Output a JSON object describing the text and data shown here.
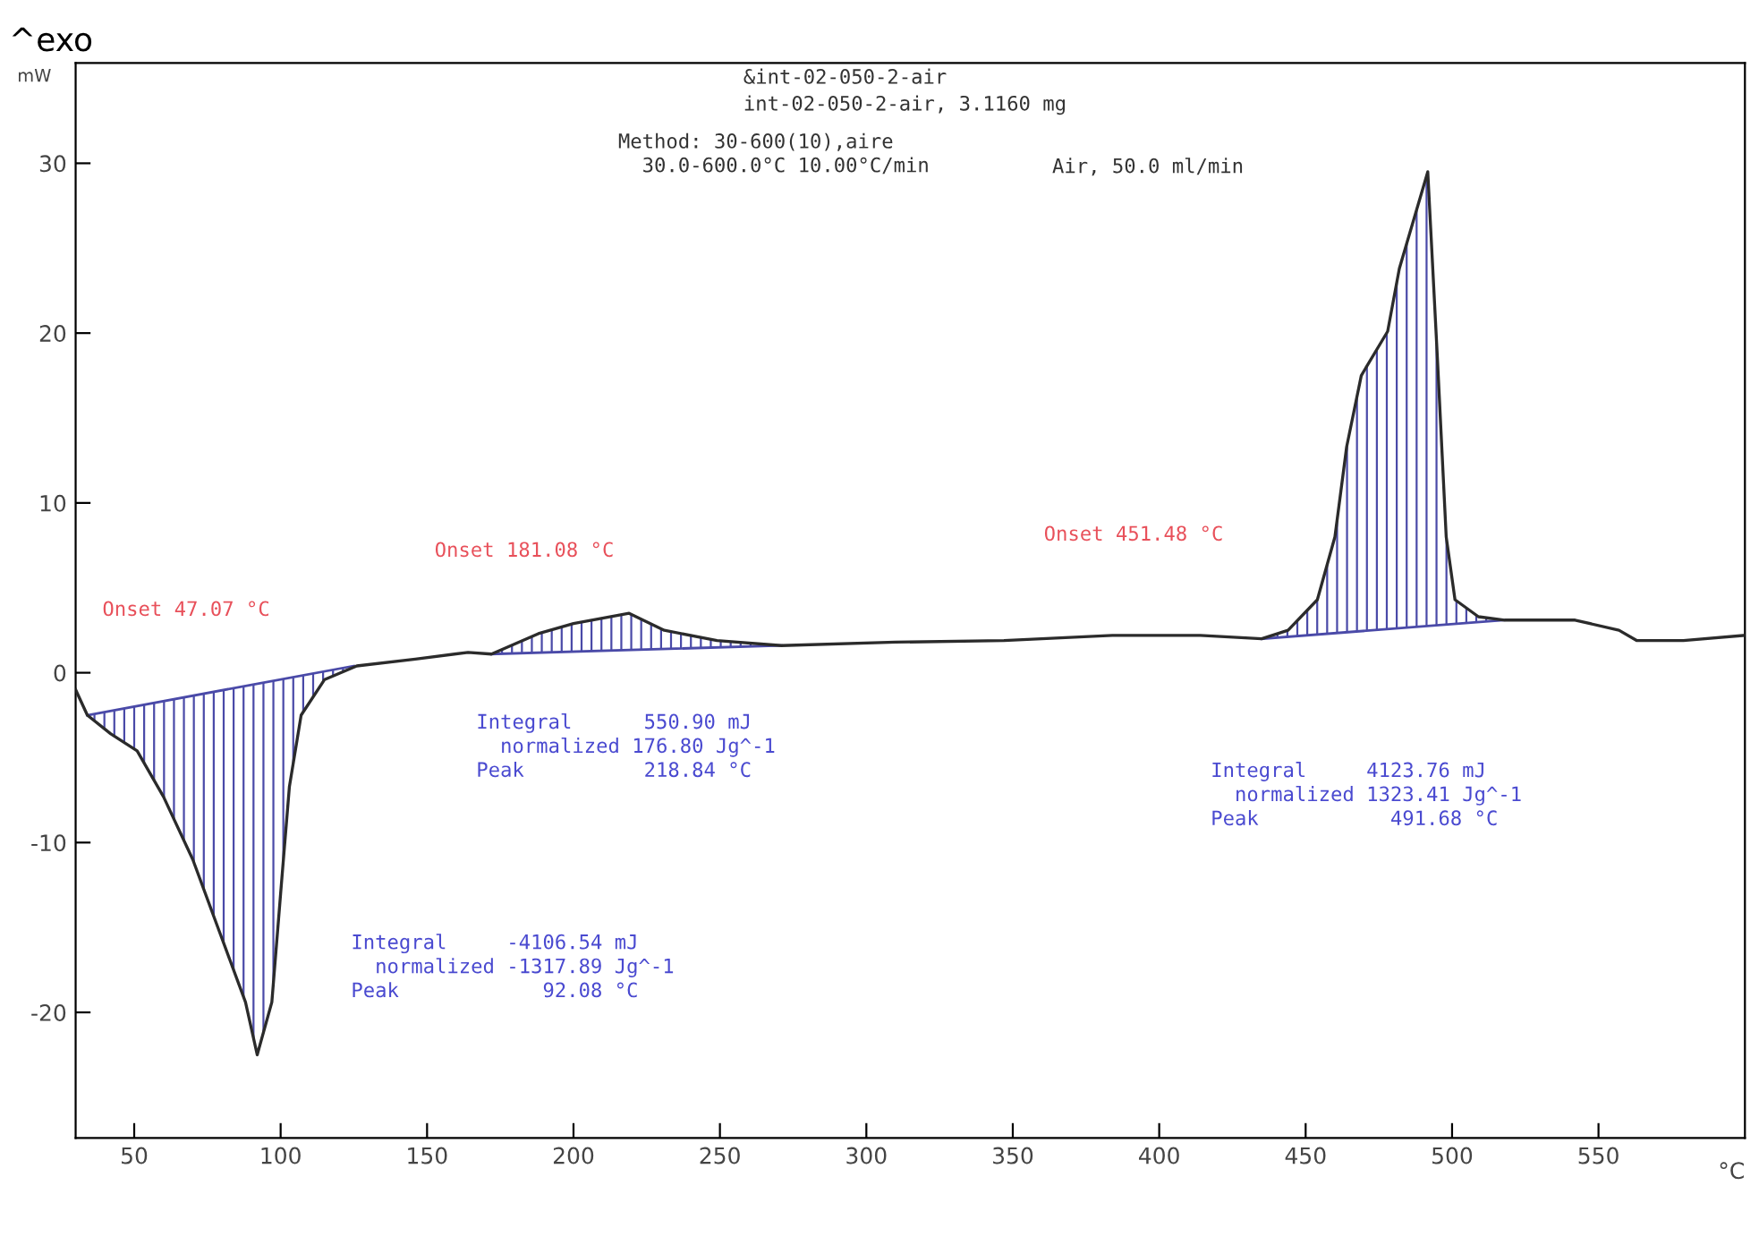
{
  "chart_data": {
    "type": "line",
    "xlabel": "°C",
    "ylabel": "mW",
    "xlim": [
      30,
      600
    ],
    "ylim": [
      -27.4,
      35.9
    ],
    "xticks": [
      50,
      100,
      150,
      200,
      250,
      300,
      350,
      400,
      450,
      500,
      550
    ],
    "yticks": [
      -20,
      -10,
      0,
      10,
      20,
      30
    ],
    "grid": false,
    "legend": false,
    "marker": "none",
    "line_style": "solid",
    "series": [
      {
        "color": "#2b2b2b",
        "x": [
          30,
          34,
          42,
          51,
          60,
          70,
          79,
          88,
          92,
          97,
          100,
          103,
          107,
          115,
          126,
          146,
          164,
          172,
          188,
          200,
          219,
          231,
          249,
          271,
          310,
          347,
          384,
          414,
          435,
          444,
          454,
          460,
          464,
          469,
          478,
          482,
          491.7,
          495,
          498,
          501,
          509,
          518,
          542,
          557,
          563,
          579,
          600
        ],
        "values": [
          -1.0,
          -2.5,
          -3.6,
          -4.6,
          -7.3,
          -11.0,
          -15.2,
          -19.4,
          -22.5,
          -19.4,
          -13.0,
          -6.7,
          -2.5,
          -0.4,
          0.4,
          0.8,
          1.2,
          1.1,
          2.3,
          2.9,
          3.5,
          2.5,
          1.9,
          1.6,
          1.8,
          1.9,
          2.2,
          2.2,
          2.0,
          2.5,
          4.3,
          8.0,
          13.3,
          17.5,
          20.1,
          23.8,
          29.5,
          18.5,
          8.0,
          4.3,
          3.3,
          3.1,
          3.1,
          2.5,
          1.9,
          1.9,
          2.2
        ]
      },
      {
        "type": "area",
        "color": "#4a4aa8",
        "x": [
          34,
          42,
          51,
          60,
          70,
          79,
          88,
          92,
          97,
          100,
          103,
          107,
          115,
          125
        ],
        "values": [
          -2.5,
          -3.6,
          -4.6,
          -7.3,
          -11.0,
          -15.2,
          -19.4,
          -22.5,
          -19.4,
          -13.0,
          -6.7,
          -2.5,
          -0.4,
          0.4
        ]
      },
      {
        "type": "area",
        "color": "#4a4aa8",
        "x": [
          172,
          188,
          200,
          219,
          231,
          249,
          271
        ],
        "values": [
          1.1,
          2.3,
          2.9,
          3.5,
          2.5,
          1.9,
          1.6
        ]
      },
      {
        "type": "area",
        "color": "#4a4aa8",
        "x": [
          435,
          444,
          454,
          460,
          464,
          469,
          478,
          482,
          491.7,
          495,
          498,
          501,
          509,
          518
        ],
        "values": [
          2.0,
          2.5,
          4.3,
          8.0,
          13.3,
          17.5,
          20.1,
          23.8,
          29.5,
          18.5,
          8.0,
          4.3,
          3.3,
          3.1
        ]
      }
    ],
    "annotations": [
      "^exo",
      "&int-02-050-2-air",
      "int-02-050-2-air, 3.1160 mg",
      "Method: 30-600(10),aire\n  30.0-600.0°C 10.00°C/min",
      "Air, 50.0 ml/min",
      "Onset 47.07 °C",
      "Onset 181.08 °C",
      "Onset 451.48 °C",
      "Integral     -4106.54 mJ\n  normalized -1317.89 Jg^-1\nPeak            92.08 °C",
      "Integral      550.90 mJ\n  normalized 176.80 Jg^-1\nPeak          218.84 °C",
      "Integral     4123.76 mJ\n  normalized 1323.41 Jg^-1\nPeak           491.68 °C"
    ]
  }
}
